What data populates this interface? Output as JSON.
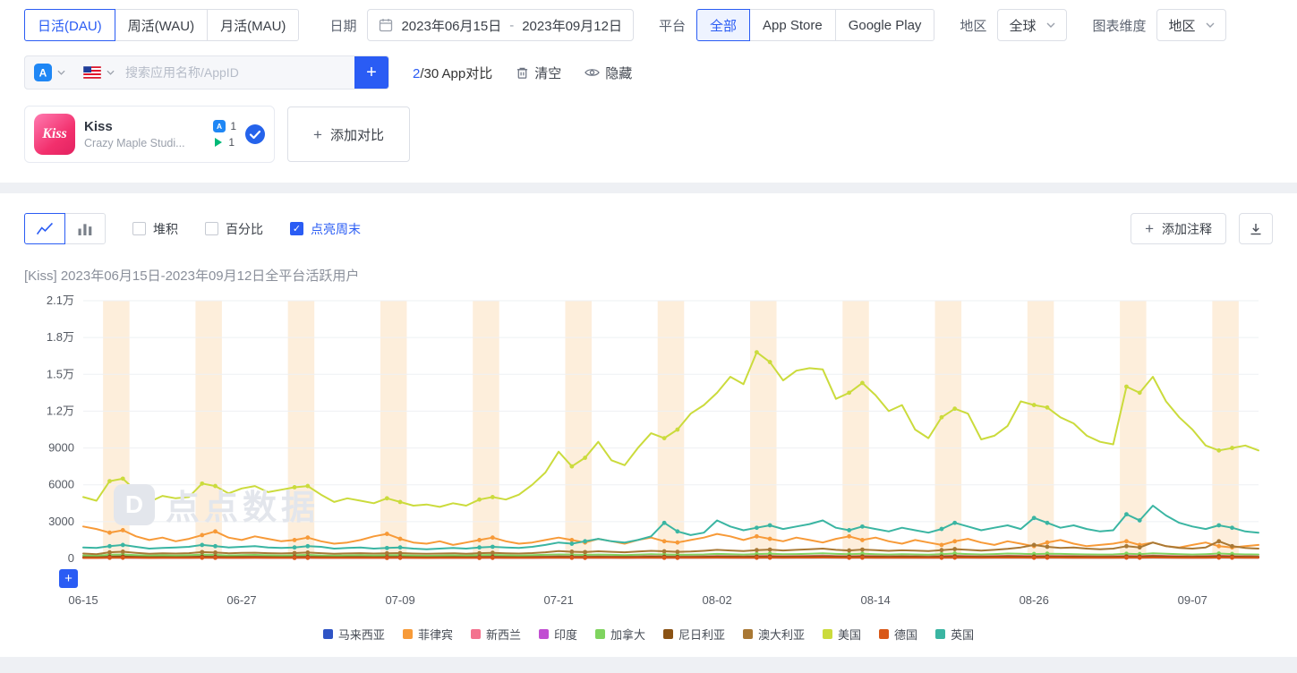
{
  "icons": {
    "plus": "+",
    "check": "✓"
  },
  "toolbar": {
    "metric_tabs": [
      {
        "label": "日活(DAU)",
        "active": true
      },
      {
        "label": "周活(WAU)",
        "active": false
      },
      {
        "label": "月活(MAU)",
        "active": false
      }
    ],
    "date": {
      "label": "日期",
      "start": "2023年06月15日",
      "separator": "-",
      "end": "2023年09月12日"
    },
    "platform": {
      "label": "平台",
      "options": [
        {
          "label": "全部",
          "active": true
        },
        {
          "label": "App Store",
          "active": false
        },
        {
          "label": "Google Play",
          "active": false
        }
      ]
    },
    "region": {
      "label": "地区",
      "value": "全球"
    },
    "dimension": {
      "label": "图表维度",
      "value": "地区"
    }
  },
  "search": {
    "placeholder": "搜索应用名称/AppID",
    "compare_current": "2",
    "compare_rest": "/30 App对比",
    "clear_label": "清空",
    "hide_label": "隐藏",
    "country_flag": "US"
  },
  "app_card": {
    "name": "Kiss",
    "icon_text": "Kiss",
    "developer": "Crazy Maple Studi...",
    "appstore_count": "1",
    "googleplay_count": "1",
    "add_compare_label": "添加对比"
  },
  "chart_panel": {
    "stacked_label": "堆积",
    "percent_label": "百分比",
    "weekend_label": "点亮周末",
    "annotation_label": "添加注释",
    "title": "[Kiss]  2023年06月15日-2023年09月12日全平台活跃用户",
    "watermark_logo": "D",
    "watermark": "点点数据"
  },
  "chart_data": {
    "type": "line",
    "title": "[Kiss] 2023年06月15日-2023年09月12日全平台活跃用户",
    "x_start": "2023-06-15",
    "x_end": "2023-09-12",
    "first_weekday_mon0": 3,
    "weekend_highlight": true,
    "weekend_band_color": "#fdeedb",
    "ylim": [
      0,
      21000
    ],
    "grid": true,
    "legend_position": "bottom",
    "y_ticks": [
      {
        "value": 0,
        "label": "0"
      },
      {
        "value": 3000,
        "label": "3000"
      },
      {
        "value": 6000,
        "label": "6000"
      },
      {
        "value": 9000,
        "label": "9000"
      },
      {
        "value": 12000,
        "label": "1.2万"
      },
      {
        "value": 15000,
        "label": "1.5万"
      },
      {
        "value": 18000,
        "label": "1.8万"
      },
      {
        "value": 21000,
        "label": "2.1万"
      }
    ],
    "x_ticks": [
      {
        "index": 0,
        "label": "06-15"
      },
      {
        "index": 12,
        "label": "06-27"
      },
      {
        "index": 24,
        "label": "07-09"
      },
      {
        "index": 36,
        "label": "07-21"
      },
      {
        "index": 48,
        "label": "08-02"
      },
      {
        "index": 60,
        "label": "08-14"
      },
      {
        "index": 72,
        "label": "08-26"
      },
      {
        "index": 84,
        "label": "09-07"
      }
    ],
    "series": [
      {
        "name": "马来西亚",
        "color": "#2f54c5",
        "values": [
          80,
          70,
          110,
          120,
          95,
          85,
          90,
          88,
          92,
          115,
          105,
          90,
          95,
          100,
          92,
          88,
          90,
          100,
          92,
          85,
          88,
          92,
          86,
          90,
          95,
          85,
          80,
          85,
          90,
          84,
          92,
          98,
          90,
          86,
          92,
          100,
          110,
          105,
          98,
          108,
          102,
          95,
          105,
          115,
          108,
          100,
          105,
          110,
          125,
          118,
          108,
          120,
          128,
          115,
          122,
          130,
          140,
          125,
          115,
          128,
          120,
          110,
          118,
          112,
          105,
          118,
          135,
          122,
          110,
          122,
          135,
          128,
          120,
          130,
          124,
          118,
          112,
          108,
          112,
          130,
          120,
          145,
          128,
          115,
          108,
          118,
          138,
          122,
          110,
          105
        ]
      },
      {
        "name": "菲律宾",
        "color": "#f79a38",
        "values": [
          2600,
          2400,
          2100,
          2300,
          1800,
          1500,
          1700,
          1400,
          1600,
          1900,
          2200,
          1700,
          1500,
          1800,
          1600,
          1400,
          1500,
          1700,
          1400,
          1200,
          1300,
          1500,
          1800,
          2000,
          1600,
          1300,
          1200,
          1400,
          1100,
          1300,
          1500,
          1700,
          1400,
          1200,
          1300,
          1500,
          1700,
          1500,
          1300,
          1600,
          1400,
          1200,
          1500,
          1700,
          1400,
          1300,
          1500,
          1700,
          2000,
          1800,
          1500,
          1800,
          1600,
          1400,
          1700,
          1500,
          1300,
          1600,
          1800,
          1500,
          1700,
          1400,
          1200,
          1500,
          1300,
          1100,
          1400,
          1600,
          1300,
          1100,
          1400,
          1200,
          1000,
          1300,
          1500,
          1200,
          1000,
          1100,
          1200,
          1400,
          1100,
          1300,
          1000,
          900,
          1100,
          1300,
          1000,
          900,
          1000,
          1100
        ]
      },
      {
        "name": "新西兰",
        "color": "#f3728e",
        "values": [
          140,
          130,
          180,
          190,
          160,
          140,
          150,
          145,
          155,
          185,
          170,
          150,
          158,
          165,
          152,
          145,
          150,
          165,
          152,
          140,
          146,
          152,
          142,
          150,
          158,
          142,
          134,
          142,
          150,
          140,
          152,
          162,
          150,
          142,
          152,
          166,
          182,
          172,
          162,
          178,
          168,
          156,
          172,
          190,
          178,
          166,
          172,
          182,
          205,
          192,
          178,
          198,
          210,
          190,
          200,
          215,
          230,
          205,
          190,
          210,
          198,
          182,
          194,
          186,
          174,
          194,
          222,
          202,
          182,
          202,
          222,
          210,
          198,
          214,
          204,
          194,
          184,
          178,
          184,
          214,
          198,
          240,
          210,
          190,
          178,
          194,
          228,
          202,
          182,
          174
        ]
      },
      {
        "name": "印度",
        "color": "#c14ed2",
        "values": [
          50,
          45,
          70,
          75,
          60,
          52,
          56,
          54,
          58,
          72,
          66,
          56,
          60,
          63,
          58,
          55,
          57,
          63,
          58,
          53,
          55,
          58,
          54,
          57,
          60,
          54,
          50,
          54,
          57,
          53,
          58,
          62,
          57,
          54,
          58,
          63,
          70,
          66,
          62,
          68,
          64,
          60,
          66,
          72,
          68,
          63,
          66,
          70,
          80,
          75,
          68,
          76,
          80,
          73,
          77,
          82,
          88,
          78,
          72,
          80,
          75,
          70,
          74,
          71,
          66,
          74,
          85,
          77,
          70,
          77,
          85,
          80,
          75,
          82,
          78,
          74,
          70,
          68,
          70,
          82,
          75,
          92,
          80,
          72,
          68,
          74,
          87,
          77,
          70,
          66
        ]
      },
      {
        "name": "加拿大",
        "color": "#7fd45f",
        "values": [
          250,
          220,
          300,
          320,
          270,
          230,
          260,
          240,
          270,
          310,
          290,
          250,
          270,
          290,
          260,
          240,
          260,
          290,
          250,
          230,
          250,
          270,
          240,
          260,
          280,
          240,
          220,
          240,
          260,
          230,
          270,
          290,
          260,
          240,
          270,
          300,
          330,
          310,
          290,
          320,
          300,
          280,
          310,
          340,
          320,
          300,
          310,
          330,
          370,
          350,
          320,
          360,
          380,
          340,
          360,
          390,
          420,
          370,
          340,
          380,
          350,
          320,
          350,
          330,
          310,
          350,
          400,
          360,
          330,
          360,
          400,
          380,
          360,
          390,
          370,
          350,
          330,
          320,
          330,
          380,
          350,
          420,
          380,
          340,
          320,
          350,
          400,
          360,
          330,
          320
        ]
      },
      {
        "name": "尼日利亚",
        "color": "#8a5214",
        "values": [
          110,
          100,
          140,
          150,
          125,
          108,
          118,
          112,
          120,
          145,
          132,
          115,
          122,
          128,
          118,
          112,
          118,
          130,
          120,
          108,
          114,
          120,
          110,
          118,
          124,
          110,
          104,
          110,
          118,
          108,
          120,
          128,
          118,
          110,
          120,
          130,
          142,
          134,
          126,
          140,
          132,
          122,
          134,
          148,
          140,
          130,
          134,
          142,
          160,
          150,
          138,
          154,
          162,
          148,
          156,
          166,
          178,
          158,
          146,
          162,
          152,
          140,
          150,
          144,
          134,
          150,
          172,
          156,
          142,
          156,
          172,
          162,
          152,
          166,
          158,
          150,
          142,
          138,
          142,
          166,
          152,
          186,
          162,
          146,
          138,
          150,
          176,
          156,
          142,
          134
        ]
      },
      {
        "name": "澳大利亚",
        "color": "#a97834",
        "values": [
          400,
          350,
          500,
          550,
          450,
          380,
          420,
          400,
          430,
          520,
          480,
          420,
          450,
          470,
          430,
          410,
          440,
          480,
          430,
          390,
          410,
          430,
          400,
          420,
          440,
          400,
          380,
          400,
          420,
          390,
          430,
          460,
          420,
          400,
          440,
          500,
          600,
          550,
          520,
          580,
          540,
          500,
          560,
          620,
          580,
          540,
          560,
          620,
          700,
          650,
          600,
          680,
          720,
          650,
          700,
          750,
          800,
          700,
          650,
          720,
          680,
          620,
          660,
          640,
          600,
          680,
          760,
          700,
          640,
          700,
          780,
          900,
          1100,
          950,
          850,
          900,
          800,
          750,
          800,
          1000,
          900,
          1300,
          1000,
          850,
          800,
          900,
          1400,
          1000,
          850,
          800
        ]
      },
      {
        "name": "美国",
        "color": "#cbdb3c",
        "values": [
          5000,
          4700,
          6300,
          6500,
          5500,
          4600,
          5100,
          4900,
          5000,
          6100,
          5900,
          5300,
          5700,
          5900,
          5400,
          5600,
          5800,
          5900,
          5200,
          4600,
          4900,
          4700,
          4500,
          4900,
          4600,
          4300,
          4400,
          4200,
          4500,
          4300,
          4800,
          5000,
          4800,
          5200,
          6000,
          7000,
          8700,
          7500,
          8200,
          9500,
          8000,
          7600,
          9000,
          10200,
          9800,
          10500,
          11800,
          12500,
          13500,
          14800,
          14200,
          16800,
          16000,
          14500,
          15300,
          15500,
          15400,
          13000,
          13500,
          14300,
          13300,
          12000,
          12500,
          10500,
          9800,
          11500,
          12200,
          11800,
          9700,
          10000,
          10800,
          12800,
          12500,
          12300,
          11500,
          11000,
          10000,
          9500,
          9300,
          14000,
          13500,
          14800,
          12800,
          11500,
          10500,
          9200,
          8800,
          9000,
          9200,
          8800
        ]
      },
      {
        "name": "德国",
        "color": "#d95818",
        "values": [
          40,
          35,
          55,
          60,
          48,
          40,
          44,
          42,
          46,
          58,
          52,
          44,
          47,
          50,
          45,
          43,
          45,
          50,
          46,
          41,
          43,
          46,
          42,
          45,
          48,
          42,
          39,
          42,
          45,
          41,
          46,
          49,
          45,
          42,
          46,
          50,
          56,
          52,
          49,
          54,
          51,
          47,
          52,
          58,
          54,
          50,
          52,
          56,
          64,
          60,
          54,
          61,
          64,
          58,
          62,
          66,
          71,
          63,
          57,
          64,
          60,
          56,
          59,
          57,
          53,
          59,
          68,
          62,
          56,
          62,
          68,
          64,
          60,
          66,
          62,
          59,
          56,
          54,
          56,
          66,
          60,
          74,
          64,
          57,
          54,
          60,
          70,
          62,
          56,
          53
        ]
      },
      {
        "name": "英国",
        "color": "#3ab5a2",
        "values": [
          900,
          850,
          1000,
          1100,
          950,
          800,
          850,
          900,
          950,
          1100,
          1000,
          900,
          950,
          1000,
          900,
          850,
          900,
          1000,
          950,
          800,
          850,
          900,
          800,
          850,
          900,
          800,
          750,
          800,
          850,
          800,
          900,
          950,
          900,
          850,
          950,
          1100,
          1300,
          1200,
          1400,
          1600,
          1400,
          1300,
          1500,
          1800,
          2900,
          2200,
          1900,
          2100,
          3100,
          2600,
          2300,
          2500,
          2700,
          2400,
          2600,
          2800,
          3100,
          2500,
          2300,
          2600,
          2400,
          2200,
          2500,
          2300,
          2100,
          2400,
          2900,
          2600,
          2300,
          2500,
          2700,
          2400,
          3300,
          2900,
          2500,
          2700,
          2400,
          2200,
          2300,
          3600,
          3100,
          4300,
          3500,
          2900,
          2600,
          2400,
          2700,
          2500,
          2200,
          2100
        ]
      }
    ]
  }
}
